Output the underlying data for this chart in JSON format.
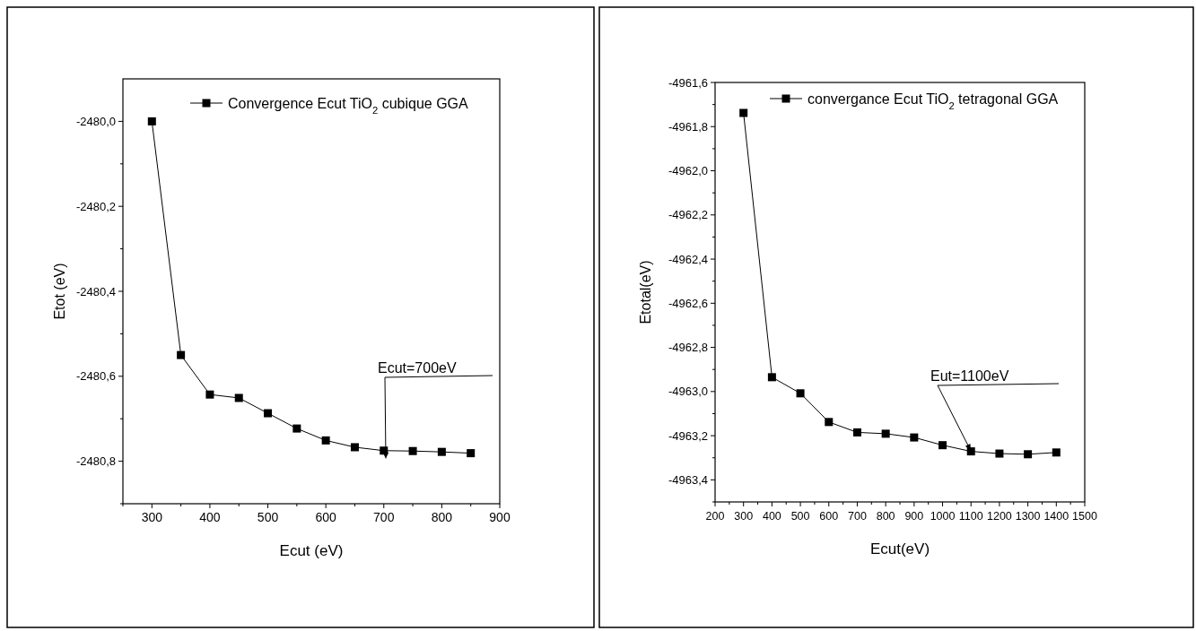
{
  "chart_data": [
    {
      "type": "line",
      "xlabel": "Ecut (eV)",
      "ylabel": "Etot (eV)",
      "marker": "square",
      "line_style": "solid",
      "legend": "top right",
      "grid": false,
      "x": [
        300,
        350,
        400,
        450,
        500,
        550,
        600,
        650,
        700,
        750,
        800,
        850
      ],
      "series": [
        {
          "name": "Convergence Ecut TiO$_{2}$ cubique GGA",
          "color": "#000000",
          "values": [
            -2480.0,
            -2480.55,
            -2480.643,
            -2480.651,
            -2480.687,
            -2480.723,
            -2480.751,
            -2480.767,
            -2480.775,
            -2480.776,
            -2480.778,
            -2480.781
          ]
        }
      ],
      "xlim": [
        250,
        900
      ],
      "xticks": [
        {
          "value": 250,
          "label": null
        },
        300,
        {
          "value": 350,
          "label": null
        },
        400,
        {
          "value": 450,
          "label": null
        },
        500,
        {
          "value": 550,
          "label": null
        },
        600,
        {
          "value": 650,
          "label": null
        },
        700,
        {
          "value": 750,
          "label": null
        },
        800,
        {
          "value": 850,
          "label": null
        },
        900
      ],
      "ylim": [
        -2480.9,
        -2479.9
      ],
      "yticks": [
        {
          "value": -2480.9,
          "label": null
        },
        {
          "value": -2480.8,
          "label": "-2480,8"
        },
        {
          "value": -2480.7,
          "label": null
        },
        {
          "value": -2480.6,
          "label": "-2480,6"
        },
        {
          "value": -2480.5,
          "label": null
        },
        {
          "value": -2480.4,
          "label": "-2480,4"
        },
        {
          "value": -2480.3,
          "label": null
        },
        {
          "value": -2480.2,
          "label": "-2480,2"
        },
        {
          "value": -2480.1,
          "label": null
        },
        {
          "value": -2480.0,
          "label": "-2480,0"
        }
      ],
      "annotations": [
        "Ecut=700eV"
      ]
    },
    {
      "type": "line",
      "xlabel": "Ecut(eV)",
      "ylabel": "Etotal(eV)",
      "marker": "square",
      "line_style": "solid",
      "legend": "top right",
      "grid": false,
      "x": [
        300,
        400,
        500,
        600,
        700,
        800,
        900,
        1000,
        1100,
        1200,
        1300,
        1400
      ],
      "series": [
        {
          "name": "convergance Ecut TiO$_{2}$ tetragonal GGA",
          "color": "#000000",
          "values": [
            -4961.738,
            -4962.935,
            -4963.008,
            -4963.138,
            -4963.185,
            -4963.191,
            -4963.208,
            -4963.243,
            -4963.271,
            -4963.281,
            -4963.284,
            -4963.276
          ]
        }
      ],
      "xlim": [
        200,
        1500
      ],
      "xticks": [
        200,
        {
          "value": 250,
          "label": null
        },
        300,
        {
          "value": 350,
          "label": null
        },
        400,
        {
          "value": 450,
          "label": null
        },
        500,
        {
          "value": 550,
          "label": null
        },
        600,
        {
          "value": 650,
          "label": null
        },
        700,
        {
          "value": 750,
          "label": null
        },
        800,
        {
          "value": 850,
          "label": null
        },
        900,
        {
          "value": 950,
          "label": null
        },
        1000,
        {
          "value": 1050,
          "label": null
        },
        1100,
        {
          "value": 1150,
          "label": null
        },
        1200,
        {
          "value": 1250,
          "label": null
        },
        1300,
        {
          "value": 1350,
          "label": null
        },
        1400,
        {
          "value": 1450,
          "label": null
        },
        1500
      ],
      "ylim": [
        -4963.5,
        -4961.6
      ],
      "yticks": [
        {
          "value": -4963.5,
          "label": null
        },
        {
          "value": -4963.4,
          "label": "-4963,4"
        },
        {
          "value": -4963.3,
          "label": null
        },
        {
          "value": -4963.2,
          "label": "-4963,2"
        },
        {
          "value": -4963.1,
          "label": null
        },
        {
          "value": -4963.0,
          "label": "-4963,0"
        },
        {
          "value": -4962.9,
          "label": null
        },
        {
          "value": -4962.8,
          "label": "-4962,8"
        },
        {
          "value": -4962.7,
          "label": null
        },
        {
          "value": -4962.6,
          "label": "-4962,6"
        },
        {
          "value": -4962.5,
          "label": null
        },
        {
          "value": -4962.4,
          "label": "-4962,4"
        },
        {
          "value": -4962.3,
          "label": null
        },
        {
          "value": -4962.2,
          "label": "-4962,2"
        },
        {
          "value": -4962.1,
          "label": null
        },
        {
          "value": -4962.0,
          "label": "-4962,0"
        },
        {
          "value": -4961.9,
          "label": null
        },
        {
          "value": -4961.8,
          "label": "-4961,8"
        },
        {
          "value": -4961.7,
          "label": null
        },
        {
          "value": -4961.6,
          "label": "-4961,6"
        }
      ],
      "annotations": [
        "Eut=1100eV"
      ]
    }
  ]
}
